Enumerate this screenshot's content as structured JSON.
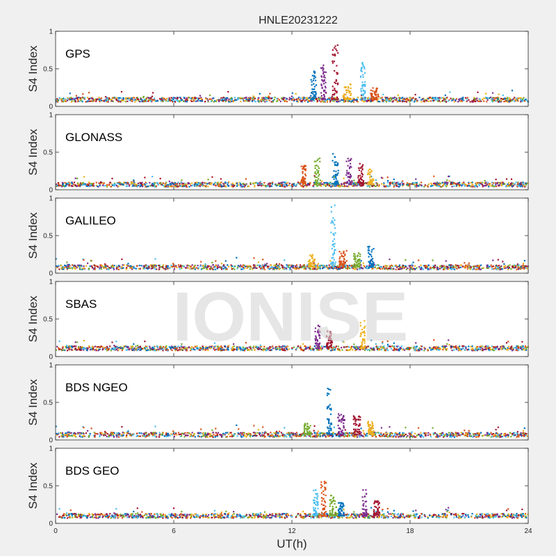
{
  "figure": {
    "title": "HNLE20231222",
    "watermark": "IONISE",
    "xlabel": "UT(h)"
  },
  "colors": [
    "#0072BD",
    "#D95319",
    "#EDB120",
    "#7E2F8E",
    "#77AC30",
    "#4DBEEE",
    "#A2142F"
  ],
  "chart_data": [
    {
      "type": "scatter",
      "label": "GPS",
      "ylabel": "S4 Index",
      "xlim": [
        0,
        24
      ],
      "ylim": [
        0,
        1
      ],
      "xticks": [
        0,
        6,
        12,
        18,
        24
      ],
      "yticks": [
        0,
        0.5,
        1
      ],
      "baseline": 0.09,
      "events": [
        {
          "x": 13.1,
          "y": 0.48,
          "w": 0.3
        },
        {
          "x": 13.6,
          "y": 0.55,
          "w": 0.25
        },
        {
          "x": 14.2,
          "y": 0.86,
          "w": 0.3
        },
        {
          "x": 14.8,
          "y": 0.3,
          "w": 0.4
        },
        {
          "x": 15.6,
          "y": 0.6,
          "w": 0.25
        },
        {
          "x": 16.2,
          "y": 0.25,
          "w": 0.4
        }
      ]
    },
    {
      "type": "scatter",
      "label": "GLONASS",
      "ylabel": "S4 Index",
      "xlim": [
        0,
        24
      ],
      "ylim": [
        0,
        1
      ],
      "xticks": [
        0,
        6,
        12,
        18,
        24
      ],
      "yticks": [
        0,
        0.5,
        1
      ],
      "baseline": 0.07,
      "events": [
        {
          "x": 12.6,
          "y": 0.33,
          "w": 0.25
        },
        {
          "x": 13.3,
          "y": 0.42,
          "w": 0.3
        },
        {
          "x": 14.2,
          "y": 0.48,
          "w": 0.35
        },
        {
          "x": 14.9,
          "y": 0.42,
          "w": 0.3
        },
        {
          "x": 15.5,
          "y": 0.35,
          "w": 0.3
        },
        {
          "x": 16.0,
          "y": 0.28,
          "w": 0.3
        }
      ]
    },
    {
      "type": "scatter",
      "label": "GALILEO",
      "ylabel": "S4 Index",
      "xlim": [
        0,
        24
      ],
      "ylim": [
        0,
        1
      ],
      "xticks": [
        0,
        6,
        12,
        18,
        24
      ],
      "yticks": [
        0,
        0.5,
        1
      ],
      "baseline": 0.08,
      "events": [
        {
          "x": 13.0,
          "y": 0.25,
          "w": 0.35
        },
        {
          "x": 14.1,
          "y": 0.92,
          "w": 0.25
        },
        {
          "x": 14.6,
          "y": 0.3,
          "w": 0.4
        },
        {
          "x": 15.3,
          "y": 0.28,
          "w": 0.35
        },
        {
          "x": 16.0,
          "y": 0.36,
          "w": 0.3
        }
      ]
    },
    {
      "type": "scatter",
      "label": "SBAS",
      "ylabel": "S4 Index",
      "xlim": [
        0,
        24
      ],
      "ylim": [
        0,
        1
      ],
      "xticks": [
        0,
        6,
        12,
        18,
        24
      ],
      "yticks": [
        0,
        0.5,
        1
      ],
      "baseline": 0.11,
      "events": [
        {
          "x": 13.3,
          "y": 0.42,
          "w": 0.25
        },
        {
          "x": 13.9,
          "y": 0.35,
          "w": 0.3
        },
        {
          "x": 15.6,
          "y": 0.48,
          "w": 0.25
        }
      ]
    },
    {
      "type": "scatter",
      "label": "BDS NGEO",
      "ylabel": "S4 Index",
      "xlim": [
        0,
        24
      ],
      "ylim": [
        0,
        1
      ],
      "xticks": [
        0,
        6,
        12,
        18,
        24
      ],
      "yticks": [
        0,
        0.5,
        1
      ],
      "baseline": 0.07,
      "events": [
        {
          "x": 12.8,
          "y": 0.22,
          "w": 0.35
        },
        {
          "x": 13.9,
          "y": 0.72,
          "w": 0.25
        },
        {
          "x": 14.5,
          "y": 0.35,
          "w": 0.35
        },
        {
          "x": 15.3,
          "y": 0.32,
          "w": 0.35
        },
        {
          "x": 16.0,
          "y": 0.25,
          "w": 0.3
        }
      ]
    },
    {
      "type": "scatter",
      "label": "BDS GEO",
      "ylabel": "S4 Index",
      "xlim": [
        0,
        24
      ],
      "ylim": [
        0,
        1
      ],
      "xticks": [
        0,
        6,
        12,
        18,
        24
      ],
      "yticks": [
        0,
        0.5,
        1
      ],
      "baseline": 0.1,
      "events": [
        {
          "x": 13.2,
          "y": 0.45,
          "w": 0.25
        },
        {
          "x": 13.6,
          "y": 0.56,
          "w": 0.25
        },
        {
          "x": 14.1,
          "y": 0.38,
          "w": 0.35
        },
        {
          "x": 14.5,
          "y": 0.28,
          "w": 0.3
        },
        {
          "x": 15.7,
          "y": 0.45,
          "w": 0.25
        },
        {
          "x": 16.3,
          "y": 0.3,
          "w": 0.3
        }
      ]
    }
  ]
}
